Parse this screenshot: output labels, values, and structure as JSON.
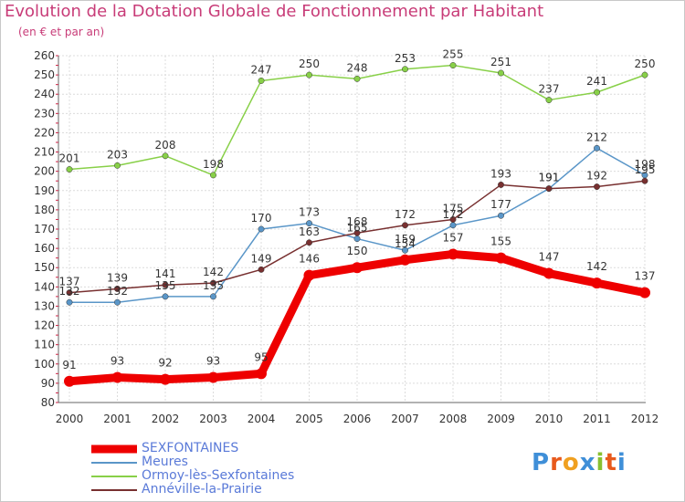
{
  "chart_data": {
    "type": "line",
    "title": "Evolution de la Dotation Globale de Fonctionnement par Habitant",
    "subtitle": "(en € et par an)",
    "categories": [
      "2000",
      "2001",
      "2002",
      "2003",
      "2004",
      "2005",
      "2006",
      "2007",
      "2008",
      "2009",
      "2010",
      "2011",
      "2012"
    ],
    "ylim": [
      80,
      260
    ],
    "yticks": [
      80,
      90,
      100,
      110,
      120,
      130,
      140,
      150,
      160,
      170,
      180,
      190,
      200,
      210,
      220,
      230,
      240,
      250,
      260
    ],
    "grid": true,
    "series": [
      {
        "name": "Ormoy-lès-Sexfontaines",
        "color": "#88d048",
        "values": [
          201,
          203,
          208,
          198,
          247,
          250,
          248,
          253,
          255,
          251,
          237,
          241,
          250
        ]
      },
      {
        "name": "Meures",
        "color": "#5a96c8",
        "values": [
          132,
          132,
          135,
          135,
          170,
          173,
          165,
          159,
          172,
          177,
          191,
          212,
          198
        ]
      },
      {
        "name": "Annéville-la-Prairie",
        "color": "#783030",
        "values": [
          137,
          139,
          141,
          142,
          149,
          163,
          168,
          172,
          175,
          193,
          191,
          192,
          195
        ]
      },
      {
        "name": "SEXFONTAINES",
        "color": "#ee0000",
        "values": [
          91,
          93,
          92,
          93,
          95,
          146,
          150,
          154,
          157,
          155,
          147,
          142,
          137
        ]
      }
    ],
    "labels": {
      "Ormoy-lès-Sexfontaines": [
        "201",
        "203",
        "208",
        "198",
        "247",
        "250",
        "248",
        "253",
        "255",
        "251",
        "237",
        "241",
        "250"
      ],
      "Meures": [
        "132",
        "132",
        "135",
        "135",
        "170",
        "173",
        "165",
        "159",
        "172",
        "177",
        "191",
        "212",
        "198"
      ],
      "Annéville-la-Prairie": [
        "137",
        "139",
        "141",
        "142",
        "149",
        "163",
        "168",
        "172",
        "175",
        "193",
        "191",
        "192",
        "195"
      ],
      "SEXFONTAINES": [
        "91",
        "93",
        "92",
        "93",
        "95",
        "146",
        "150",
        "154",
        "157",
        "155",
        "147",
        "142",
        "137"
      ]
    },
    "legend": [
      {
        "name": "SEXFONTAINES",
        "color": "#ee0000",
        "text_color": "#5a7ad8"
      },
      {
        "name": "Meures",
        "color": "#5a96c8",
        "text_color": "#5a7ad8"
      },
      {
        "name": "Ormoy-lès-Sexfontaines",
        "color": "#88d048",
        "text_color": "#5a7ad8"
      },
      {
        "name": "Annéville-la-Prairie",
        "color": "#783030",
        "text_color": "#5a7ad8"
      }
    ]
  },
  "logo": {
    "text": "Proxiti",
    "colors": [
      "#3f8fd8",
      "#e85a1c",
      "#f0a020",
      "#3f8fd8",
      "#88c030",
      "#e85a1c",
      "#3f8fd8"
    ]
  }
}
